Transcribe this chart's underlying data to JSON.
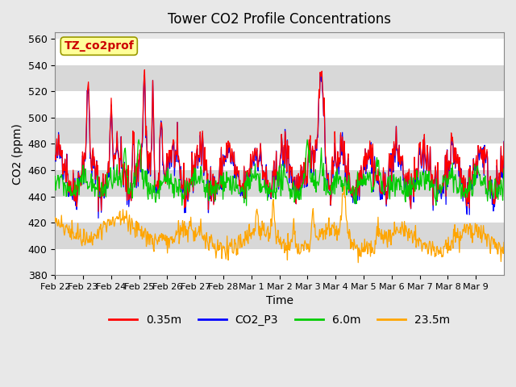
{
  "title": "Tower CO2 Profile Concentrations",
  "xlabel": "Time",
  "ylabel": "CO2 (ppm)",
  "ylim": [
    380,
    565
  ],
  "yticks": [
    380,
    400,
    420,
    440,
    460,
    480,
    500,
    520,
    540,
    560
  ],
  "date_labels": [
    "Feb 22",
    "Feb 23",
    "Feb 24",
    "Feb 25",
    "Feb 26",
    "Feb 27",
    "Feb 28",
    "Mar 1",
    "Mar 2",
    "Mar 3",
    "Mar 4",
    "Mar 5",
    "Mar 6",
    "Mar 7",
    "Mar 8",
    "Mar 9"
  ],
  "colors": {
    "red": "#ff0000",
    "blue": "#0000ff",
    "green": "#00cc00",
    "orange": "#ffa500"
  },
  "legend_label": "TZ_co2prof",
  "legend_entries": [
    "0.35m",
    "CO2_P3",
    "6.0m",
    "23.5m"
  ],
  "bg_color": "#e8e8e8",
  "annotation_box_color": "#ffff99",
  "annotation_text_color": "#cc0000"
}
